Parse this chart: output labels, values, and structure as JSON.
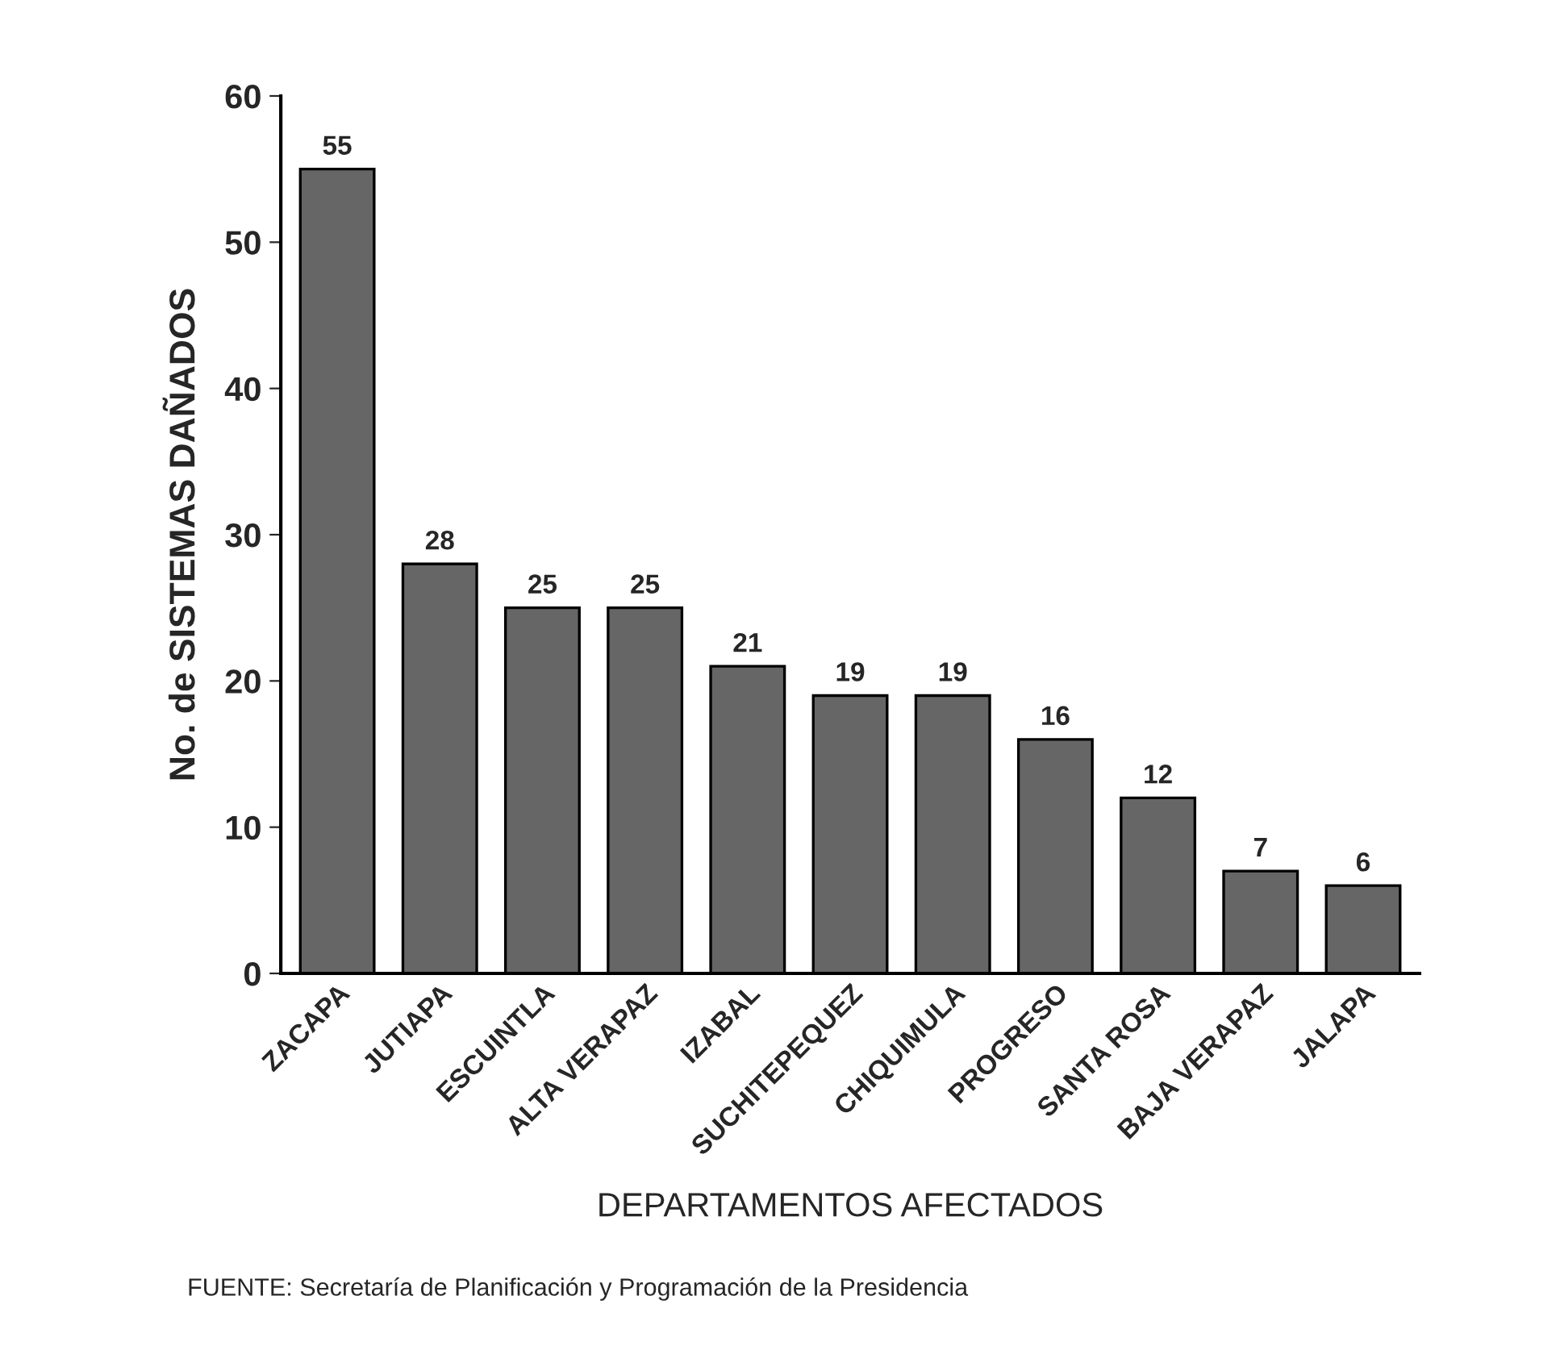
{
  "chart_data": {
    "type": "bar",
    "xlabel": "DEPARTAMENTOS AFECTADOS",
    "ylabel": "No. de SISTEMAS DAÑADOS",
    "categories": [
      "ZACAPA",
      "JUTIAPA",
      "ESCUINTLA",
      "ALTA VERAPAZ",
      "IZABAL",
      "SUCHITEPEQUEZ",
      "CHIQUIMULA",
      "PROGRESO",
      "SANTA ROSA",
      "BAJA VERAPAZ",
      "JALAPA"
    ],
    "values": [
      55,
      28,
      25,
      25,
      21,
      19,
      19,
      16,
      12,
      7,
      6
    ],
    "color": "#666666",
    "ylim": [
      0,
      60
    ],
    "yticks": [
      0,
      10,
      20,
      30,
      40,
      50,
      60
    ],
    "grid": false,
    "data_labels": true,
    "annotations": [
      "FUENTE: Secretaría de Planificación y Programación de la Presidencia"
    ]
  }
}
